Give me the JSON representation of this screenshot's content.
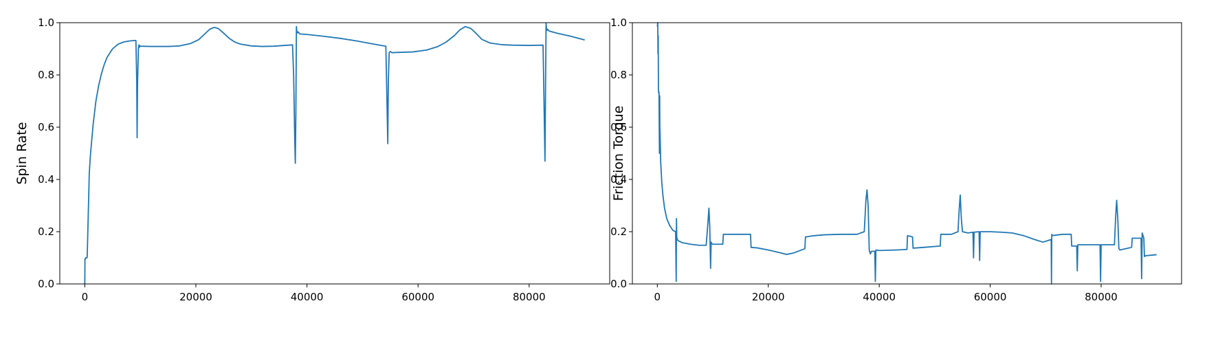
{
  "figure": {
    "background": "#ffffff",
    "line_color": "#1f77b4"
  },
  "chart_data": [
    {
      "type": "line",
      "title": "",
      "xlabel": "",
      "ylabel": "Spin Rate",
      "xlim": [
        -4500,
        94500
      ],
      "ylim": [
        0.0,
        1.0
      ],
      "xticks": [
        0,
        20000,
        40000,
        60000,
        80000
      ],
      "xtick_labels": [
        "0",
        "20000",
        "40000",
        "60000",
        "80000"
      ],
      "yticks": [
        0.0,
        0.2,
        0.4,
        0.6,
        0.8,
        1.0
      ],
      "ytick_labels": [
        "0.0",
        "0.2",
        "0.4",
        "0.6",
        "0.8",
        "1.0"
      ],
      "grid": false,
      "series": [
        {
          "name": "Spin Rate",
          "x": [
            0,
            30,
            120,
            140,
            400,
            430,
            500,
            700,
            800,
            1000,
            1500,
            2000,
            2500,
            3000,
            3500,
            4000,
            5000,
            6000,
            7000,
            8000,
            9000,
            9200,
            9350,
            9420,
            9500,
            9650,
            9750,
            9800,
            9900,
            10000,
            12000,
            15000,
            17000,
            19000,
            20500,
            21500,
            22500,
            23300,
            24000,
            25000,
            26000,
            27000,
            28000,
            30000,
            32000,
            34000,
            36000,
            37400,
            37600,
            37800,
            37900,
            38000,
            38100,
            38200,
            38400,
            38700,
            40000,
            43000,
            46000,
            49000,
            52000,
            54200,
            54400,
            54550,
            54650,
            54800,
            55000,
            55300,
            56000,
            59000,
            61500,
            63500,
            65000,
            66500,
            67500,
            68500,
            69500,
            70500,
            71500,
            73000,
            75000,
            77000,
            80000,
            82500,
            82600,
            82750,
            82850,
            82950,
            83050,
            83150,
            83300,
            83600,
            85000,
            87500,
            90000
          ],
          "values": [
            0.0,
            0.095,
            0.095,
            0.1,
            0.1,
            0.105,
            0.16,
            0.33,
            0.42,
            0.49,
            0.61,
            0.7,
            0.76,
            0.805,
            0.84,
            0.867,
            0.9,
            0.918,
            0.926,
            0.93,
            0.932,
            0.932,
            0.78,
            0.56,
            0.77,
            0.9,
            0.915,
            0.905,
            0.912,
            0.91,
            0.909,
            0.909,
            0.911,
            0.92,
            0.935,
            0.955,
            0.975,
            0.982,
            0.978,
            0.96,
            0.94,
            0.926,
            0.918,
            0.911,
            0.909,
            0.91,
            0.913,
            0.915,
            0.8,
            0.55,
            0.462,
            0.65,
            0.985,
            0.96,
            0.965,
            0.957,
            0.955,
            0.948,
            0.94,
            0.93,
            0.918,
            0.91,
            0.7,
            0.537,
            0.78,
            0.885,
            0.89,
            0.885,
            0.886,
            0.888,
            0.895,
            0.908,
            0.925,
            0.95,
            0.972,
            0.985,
            0.978,
            0.958,
            0.936,
            0.922,
            0.916,
            0.914,
            0.913,
            0.914,
            0.8,
            0.6,
            0.47,
            0.75,
            0.998,
            0.97,
            0.975,
            0.968,
            0.96,
            0.948,
            0.934
          ]
        }
      ]
    },
    {
      "type": "line",
      "title": "",
      "xlabel": "",
      "ylabel": "Friction Torque",
      "xlim": [
        -4500,
        94500
      ],
      "ylim": [
        0.0,
        1.0
      ],
      "xticks": [
        0,
        20000,
        40000,
        60000,
        80000
      ],
      "xtick_labels": [
        "0",
        "20000",
        "40000",
        "60000",
        "80000"
      ],
      "yticks": [
        0.0,
        0.2,
        0.4,
        0.6,
        0.8,
        1.0
      ],
      "ytick_labels": [
        "0.0",
        "0.2",
        "0.4",
        "0.6",
        "0.8",
        "1.0"
      ],
      "grid": false,
      "series": [
        {
          "name": "Friction Torque",
          "x": [
            0,
            80,
            120,
            160,
            200,
            260,
            300,
            380,
            420,
            450,
            520,
            600,
            800,
            1000,
            1300,
            1700,
            2200,
            2800,
            3300,
            3400,
            3450,
            3500,
            3600,
            3800,
            4500,
            6000,
            7500,
            8800,
            9000,
            9300,
            9450,
            9600,
            9700,
            9800,
            10000,
            11800,
            11900,
            12500,
            14500,
            16800,
            16900,
            18000,
            20000,
            22000,
            23300,
            24500,
            26600,
            26700,
            28000,
            30000,
            33000,
            36000,
            37300,
            37600,
            37800,
            38000,
            38200,
            38400,
            38600,
            39200,
            39300,
            39400,
            40000,
            43000,
            45000,
            45100,
            46000,
            46100,
            48000,
            51000,
            51100,
            53000,
            54200,
            54400,
            54600,
            54800,
            55000,
            56000,
            56900,
            57000,
            57100,
            58000,
            58100,
            58200,
            60000,
            62000,
            64000,
            66000,
            68000,
            69500,
            71000,
            71050,
            71100,
            71200,
            73000,
            74600,
            74700,
            75600,
            75700,
            75800,
            77000,
            79000,
            79800,
            79900,
            80000,
            82400,
            82600,
            82800,
            83000,
            83200,
            83400,
            85500,
            85600,
            87200,
            87300,
            87400,
            87700,
            87800,
            88000,
            89000,
            90000
          ],
          "values": [
            0.985,
            1.0,
            0.88,
            0.95,
            0.74,
            0.73,
            0.735,
            0.5,
            0.72,
            0.6,
            0.55,
            0.47,
            0.39,
            0.34,
            0.29,
            0.25,
            0.225,
            0.205,
            0.2,
            0.01,
            0.25,
            0.18,
            0.17,
            0.165,
            0.158,
            0.152,
            0.148,
            0.148,
            0.2,
            0.29,
            0.22,
            0.06,
            0.16,
            0.155,
            0.152,
            0.152,
            0.19,
            0.19,
            0.19,
            0.19,
            0.14,
            0.138,
            0.13,
            0.12,
            0.113,
            0.118,
            0.135,
            0.18,
            0.184,
            0.188,
            0.19,
            0.19,
            0.2,
            0.32,
            0.36,
            0.3,
            0.13,
            0.115,
            0.125,
            0.125,
            0.01,
            0.13,
            0.128,
            0.13,
            0.132,
            0.185,
            0.18,
            0.137,
            0.14,
            0.145,
            0.19,
            0.19,
            0.2,
            0.28,
            0.34,
            0.25,
            0.2,
            0.195,
            0.198,
            0.1,
            0.198,
            0.2,
            0.09,
            0.2,
            0.2,
            0.198,
            0.195,
            0.185,
            0.17,
            0.16,
            0.17,
            0.0,
            0.19,
            0.185,
            0.19,
            0.19,
            0.145,
            0.145,
            0.05,
            0.15,
            0.15,
            0.15,
            0.15,
            0.01,
            0.15,
            0.15,
            0.25,
            0.32,
            0.25,
            0.135,
            0.13,
            0.14,
            0.175,
            0.175,
            0.02,
            0.195,
            0.175,
            0.105,
            0.108,
            0.11,
            0.112
          ]
        }
      ]
    }
  ]
}
